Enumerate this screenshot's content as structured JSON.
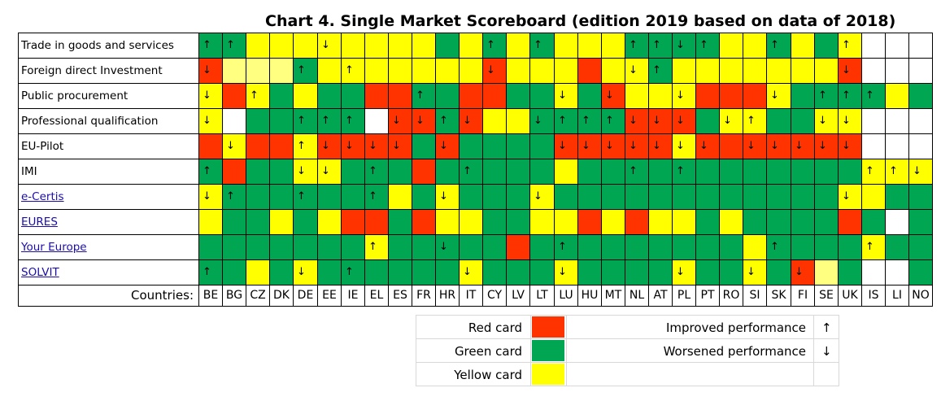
{
  "chart_data": {
    "type": "heatmap",
    "title": "Chart 4. Single Market Scoreboard (edition 2019 based on data of 2018)",
    "countries_label": "Countries:",
    "countries": [
      "BE",
      "BG",
      "CZ",
      "DK",
      "DE",
      "EE",
      "IE",
      "EL",
      "ES",
      "FR",
      "HR",
      "IT",
      "CY",
      "LV",
      "LT",
      "LU",
      "HU",
      "MT",
      "NL",
      "AT",
      "PL",
      "PT",
      "RO",
      "SI",
      "SK",
      "FI",
      "SE",
      "UK",
      "IS",
      "LI",
      "NO"
    ],
    "rows": [
      {
        "label": "Trade in goods and services",
        "link": false,
        "cards": [
          "G",
          "G",
          "Y",
          "Y",
          "Y",
          "Y",
          "Y",
          "Y",
          "Y",
          "Y",
          "G",
          "Y",
          "G",
          "Y",
          "G",
          "Y",
          "Y",
          "Y",
          "G",
          "G",
          "G",
          "G",
          "Y",
          "Y",
          "G",
          "Y",
          "G",
          "Y",
          "W",
          "W",
          "W"
        ],
        "arrows": [
          "up",
          "up",
          "",
          "",
          "",
          "down",
          "",
          "",
          "",
          "",
          "",
          "",
          "up",
          "",
          "up",
          "",
          "",
          "",
          "up",
          "up",
          "down",
          "up",
          "",
          "",
          "up",
          "",
          "",
          "up",
          "",
          "",
          ""
        ]
      },
      {
        "label": "Foreign direct Investment",
        "link": false,
        "cards": [
          "R",
          "L",
          "L",
          "L",
          "G",
          "Y",
          "Y",
          "Y",
          "Y",
          "Y",
          "Y",
          "Y",
          "R",
          "Y",
          "Y",
          "Y",
          "R",
          "Y",
          "Y",
          "G",
          "Y",
          "Y",
          "Y",
          "Y",
          "Y",
          "Y",
          "Y",
          "R",
          "W",
          "W",
          "W"
        ],
        "arrows": [
          "down",
          "",
          "",
          "",
          "up",
          "",
          "up",
          "",
          "",
          "",
          "",
          "",
          "down",
          "",
          "",
          "",
          "",
          "",
          "down",
          "up",
          "",
          "",
          "",
          "",
          "",
          "",
          "",
          "down",
          "",
          "",
          ""
        ]
      },
      {
        "label": "Public procurement",
        "link": false,
        "cards": [
          "Y",
          "R",
          "Y",
          "G",
          "Y",
          "G",
          "G",
          "R",
          "R",
          "G",
          "G",
          "R",
          "R",
          "G",
          "G",
          "Y",
          "G",
          "R",
          "Y",
          "Y",
          "Y",
          "R",
          "R",
          "R",
          "Y",
          "G",
          "G",
          "G",
          "G",
          "Y",
          "G"
        ],
        "arrows": [
          "down",
          "",
          "up",
          "",
          "",
          "",
          "",
          "",
          "",
          "up",
          "",
          "",
          "",
          "",
          "",
          "down",
          "",
          "down",
          "",
          "",
          "down",
          "",
          "",
          "",
          "down",
          "",
          "up",
          "up",
          "up",
          "",
          ""
        ]
      },
      {
        "label": "Professional qualification",
        "link": false,
        "cards": [
          "Y",
          "W",
          "G",
          "G",
          "G",
          "G",
          "G",
          "W",
          "R",
          "R",
          "G",
          "R",
          "Y",
          "Y",
          "G",
          "G",
          "G",
          "G",
          "R",
          "R",
          "R",
          "G",
          "Y",
          "Y",
          "G",
          "G",
          "Y",
          "Y",
          "W",
          "W",
          "W"
        ],
        "arrows": [
          "down",
          "",
          "",
          "",
          "up",
          "up",
          "up",
          "",
          "down",
          "down",
          "up",
          "down",
          "",
          "",
          "down",
          "up",
          "up",
          "up",
          "down",
          "down",
          "down",
          "",
          "down",
          "up",
          "",
          "",
          "down",
          "down",
          "",
          "",
          ""
        ]
      },
      {
        "label": "EU-Pilot",
        "link": false,
        "cards": [
          "R",
          "Y",
          "R",
          "R",
          "Y",
          "R",
          "R",
          "R",
          "R",
          "G",
          "R",
          "G",
          "G",
          "G",
          "G",
          "R",
          "R",
          "R",
          "R",
          "R",
          "Y",
          "R",
          "R",
          "R",
          "R",
          "R",
          "R",
          "R",
          "W",
          "W",
          "W"
        ],
        "arrows": [
          "",
          "down",
          "",
          "",
          "up",
          "down",
          "down",
          "down",
          "down",
          "",
          "down",
          "",
          "",
          "",
          "",
          "down",
          "down",
          "down",
          "down",
          "down",
          "down",
          "down",
          "",
          "down",
          "down",
          "down",
          "down",
          "down",
          "",
          "",
          ""
        ]
      },
      {
        "label": "IMI",
        "link": false,
        "cards": [
          "G",
          "R",
          "G",
          "G",
          "Y",
          "Y",
          "G",
          "G",
          "G",
          "R",
          "G",
          "G",
          "G",
          "G",
          "G",
          "Y",
          "G",
          "G",
          "G",
          "G",
          "G",
          "G",
          "G",
          "G",
          "G",
          "G",
          "G",
          "G",
          "Y",
          "Y",
          "Y"
        ],
        "arrows": [
          "up",
          "",
          "",
          "",
          "down",
          "down",
          "",
          "up",
          "",
          "",
          "",
          "up",
          "",
          "",
          "",
          "",
          "",
          "",
          "up",
          "",
          "up",
          "",
          "",
          "",
          "",
          "",
          "",
          "",
          "up",
          "up",
          "down"
        ]
      },
      {
        "label": "e-Certis",
        "link": true,
        "cards": [
          "Y",
          "G",
          "G",
          "G",
          "G",
          "G",
          "G",
          "G",
          "Y",
          "G",
          "Y",
          "G",
          "G",
          "G",
          "Y",
          "G",
          "G",
          "G",
          "G",
          "G",
          "G",
          "G",
          "G",
          "G",
          "G",
          "G",
          "G",
          "Y",
          "Y",
          "G",
          "G"
        ],
        "arrows": [
          "down",
          "up",
          "",
          "",
          "up",
          "",
          "",
          "up",
          "",
          "",
          "down",
          "",
          "",
          "",
          "down",
          "",
          "",
          "",
          "",
          "",
          "",
          "",
          "",
          "",
          "",
          "",
          "",
          "down",
          "",
          "",
          ""
        ]
      },
      {
        "label": "EURES",
        "link": true,
        "cards": [
          "Y",
          "G",
          "G",
          "Y",
          "G",
          "Y",
          "R",
          "R",
          "G",
          "R",
          "Y",
          "Y",
          "G",
          "G",
          "Y",
          "Y",
          "R",
          "Y",
          "R",
          "Y",
          "Y",
          "G",
          "Y",
          "G",
          "G",
          "G",
          "G",
          "R",
          "G",
          "W",
          "G"
        ],
        "arrows": [
          "",
          "",
          "",
          "",
          "",
          "",
          "",
          "",
          "",
          "",
          "",
          "",
          "",
          "",
          "",
          "",
          "",
          "",
          "",
          "",
          "",
          "",
          "",
          "",
          "",
          "",
          "",
          "",
          "",
          "",
          ""
        ]
      },
      {
        "label": "Your Europe",
        "link": true,
        "cards": [
          "G",
          "G",
          "G",
          "G",
          "G",
          "G",
          "G",
          "Y",
          "G",
          "G",
          "G",
          "G",
          "G",
          "R",
          "G",
          "G",
          "G",
          "G",
          "G",
          "G",
          "G",
          "G",
          "G",
          "Y",
          "G",
          "G",
          "G",
          "G",
          "Y",
          "G",
          "G"
        ],
        "arrows": [
          "",
          "",
          "",
          "",
          "",
          "",
          "",
          "up",
          "",
          "",
          "down",
          "",
          "",
          "",
          "",
          "up",
          "",
          "",
          "",
          "",
          "",
          "",
          "",
          "",
          "up",
          "",
          "",
          "",
          "up",
          "",
          ""
        ]
      },
      {
        "label": "SOLVIT",
        "link": true,
        "cards": [
          "G",
          "G",
          "Y",
          "G",
          "Y",
          "G",
          "G",
          "G",
          "G",
          "G",
          "G",
          "Y",
          "G",
          "G",
          "G",
          "Y",
          "G",
          "G",
          "G",
          "G",
          "Y",
          "G",
          "G",
          "Y",
          "G",
          "R",
          "L",
          "G",
          "W",
          "W",
          "G"
        ],
        "arrows": [
          "up",
          "",
          "",
          "",
          "down",
          "",
          "up",
          "",
          "",
          "",
          "",
          "down",
          "",
          "",
          "",
          "down",
          "",
          "",
          "",
          "",
          "down",
          "",
          "",
          "down",
          "",
          "down",
          "",
          "",
          "",
          "",
          ""
        ]
      }
    ],
    "legend": {
      "cards": [
        {
          "label": "Red card",
          "color": "#ff3300"
        },
        {
          "label": "Green card",
          "color": "#00a651"
        },
        {
          "label": "Yellow card",
          "color": "#ffff00"
        }
      ],
      "arrows": [
        {
          "label": "Improved performance",
          "symbol": "↑"
        },
        {
          "label": "Worsened performance",
          "symbol": "↓"
        }
      ]
    }
  },
  "colors": {
    "R": "#ff3300",
    "G": "#00a651",
    "Y": "#ffff00",
    "L": "#ffff80",
    "W": "#ffffff"
  },
  "arrow_symbols": {
    "up": "↑",
    "down": "↓"
  }
}
